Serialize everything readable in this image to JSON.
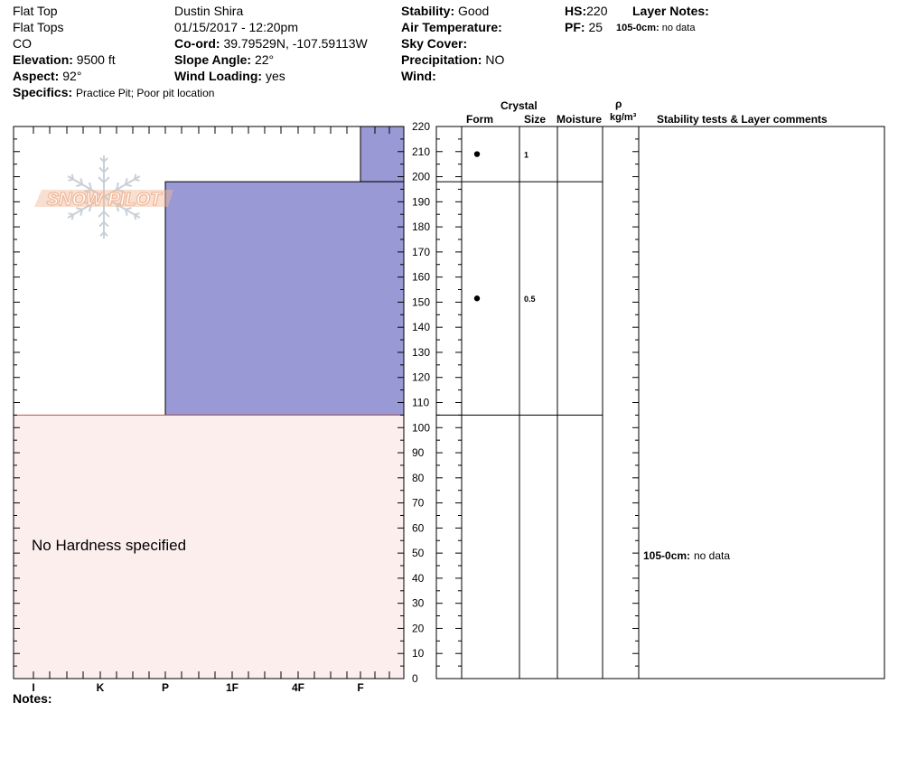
{
  "header": {
    "location": "Flat Top",
    "range": "Flat Tops",
    "state": "CO",
    "elevation_label": "Elevation:",
    "elevation_value": "9500 ft",
    "aspect_label": "Aspect:",
    "aspect_value": "92°",
    "specifics_label": "Specifics:",
    "specifics_value": "Practice Pit; Poor pit location",
    "observer": "Dustin  Shira",
    "datetime": "01/15/2017 - 12:20pm",
    "coord_label": "Co-ord:",
    "coord_value": "39.79529N, -107.59113W",
    "slope_label": "Slope Angle:",
    "slope_value": "22°",
    "wind_loading_label": "Wind Loading:",
    "wind_loading_value": "yes",
    "stability_label": "Stability:",
    "stability_value": "Good",
    "air_temp_label": "Air Temperature:",
    "sky_cover_label": "Sky Cover:",
    "precip_label": "Precipitation:",
    "precip_value": "NO",
    "wind_label": "Wind:",
    "hs_label": "HS:",
    "hs_value": "220",
    "pf_label": "PF:",
    "pf_value": "25",
    "layer_notes_label": "Layer Notes:",
    "layer_note_range": "105-0cm:",
    "layer_note_text": "no data"
  },
  "columns": {
    "crystal": "Crystal",
    "form": "Form",
    "size": "Size",
    "moisture": "Moisture",
    "rho": "ρ",
    "density_unit": "kg/m³",
    "stability": "Stability tests & Layer comments"
  },
  "logo_text": "SNOW PILOT",
  "no_hardness_text": "No Hardness specified",
  "notes_label": "Notes:",
  "stability_comment_range": "105-0cm:",
  "stability_comment_text": "no data",
  "colors": {
    "layer_fill": "#9999d6",
    "no_hardness_fill": "#fdeeee",
    "no_hardness_line": "#c0504d",
    "logo": "#f0b89a"
  },
  "chart_data": {
    "type": "bar",
    "y_axis": {
      "ylim": [
        0,
        220
      ],
      "ticks": [
        0,
        10,
        20,
        30,
        40,
        50,
        60,
        70,
        80,
        90,
        100,
        110,
        120,
        130,
        140,
        150,
        160,
        170,
        180,
        190,
        200,
        210,
        220
      ]
    },
    "x_axis": {
      "categories": [
        "I",
        "K",
        "P",
        "1F",
        "4F",
        "F"
      ],
      "reversed": true
    },
    "layers": [
      {
        "top": 220,
        "bottom": 198,
        "hardness": "F",
        "form": "dot",
        "size": "1"
      },
      {
        "top": 198,
        "bottom": 105,
        "hardness": "P",
        "form": "dot",
        "size": "0.5"
      },
      {
        "top": 105,
        "bottom": 0,
        "hardness": "",
        "form": "",
        "size": ""
      }
    ]
  }
}
